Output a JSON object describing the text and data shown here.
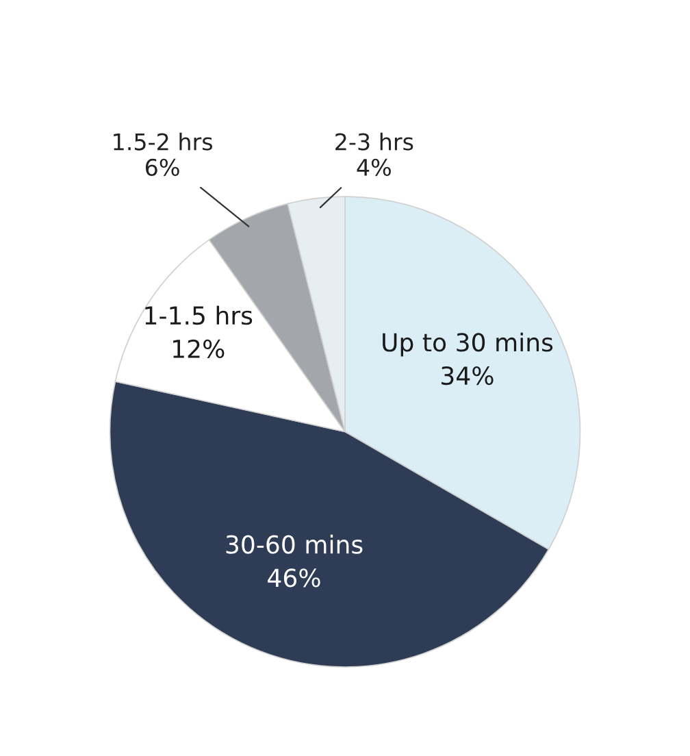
{
  "chart_data": {
    "type": "pie",
    "categories": [
      "Up to 30 mins",
      "30-60 mins",
      "1-1.5 hrs",
      "1.5-2 hrs",
      "2-3 hrs"
    ],
    "values": [
      34,
      46,
      12,
      6,
      4
    ],
    "colors": [
      "#dbeef6",
      "#2f3c55",
      "#ffffff",
      "#a3a7ab",
      "#e6eef2"
    ],
    "value_labels": [
      "34%",
      "46%",
      "12%",
      "6%",
      "4%"
    ],
    "legend": false
  }
}
